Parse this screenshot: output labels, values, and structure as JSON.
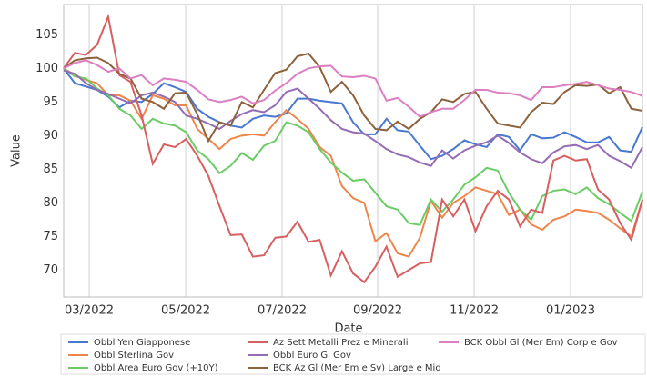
{
  "chart_data": {
    "type": "line",
    "x_label": "Date",
    "y_label": "Value",
    "x": [
      0,
      1,
      2,
      3,
      4,
      5,
      6,
      7,
      8,
      9,
      10,
      11,
      12,
      13,
      14,
      15,
      16,
      17,
      18,
      19,
      20,
      21,
      22,
      23,
      24,
      25,
      26,
      27,
      28,
      29,
      30,
      31,
      32,
      33,
      34,
      35,
      36,
      37,
      38,
      39,
      40,
      41,
      42,
      43,
      44,
      45,
      46,
      47,
      48,
      49,
      50,
      51,
      52
    ],
    "xlim": [
      0,
      52
    ],
    "xticks": [
      {
        "value": 2.29,
        "label": "03/2022"
      },
      {
        "value": 10.96,
        "label": "05/2022"
      },
      {
        "value": 19.62,
        "label": "07/2022"
      },
      {
        "value": 28.21,
        "label": "09/2022"
      },
      {
        "value": 36.88,
        "label": "11/2022"
      },
      {
        "value": 45.54,
        "label": "01/2023"
      }
    ],
    "ylim": [
      66,
      109.5
    ],
    "yticks": [
      70,
      75,
      80,
      85,
      90,
      95,
      100,
      105
    ],
    "grid": "x",
    "series": [
      {
        "name": "Obbl Yen Giapponese",
        "color": "#4878d0",
        "values": [
          100,
          97.8,
          97.3,
          96.8,
          95.8,
          94.2,
          95.2,
          95,
          96.2,
          97.8,
          97.2,
          96.5,
          94,
          92.8,
          92,
          91.5,
          91.2,
          92.5,
          93,
          92.8,
          93.3,
          95.5,
          95.5,
          95.2,
          95,
          94.8,
          92,
          90.2,
          90.2,
          92.5,
          90.8,
          90.6,
          88.5,
          86.5,
          87,
          88,
          89.3,
          88.7,
          88.3,
          90.2,
          89.8,
          87.8,
          90.2,
          89.6,
          89.7,
          90.5,
          89.8,
          89,
          89,
          89.8,
          87.8,
          87.6,
          91.3
        ]
      },
      {
        "name": "Obbl Sterlina Gov",
        "color": "#ee854a",
        "values": [
          100,
          99,
          98.3,
          97.8,
          96,
          96,
          95.2,
          92.5,
          96,
          95.5,
          94.5,
          94.5,
          91,
          89.5,
          88,
          89.5,
          90,
          90.2,
          90,
          92,
          93.8,
          92.5,
          91,
          88.3,
          87,
          82.5,
          80.7,
          80,
          74.3,
          75.5,
          72.5,
          72,
          74.8,
          80.3,
          77.8,
          80,
          81,
          82.3,
          81.8,
          81.3,
          78.2,
          79,
          76.8,
          76,
          77.5,
          78,
          79,
          78.8,
          78.5,
          77.5,
          76.2,
          75,
          80.5
        ]
      },
      {
        "name": "Obbl Area Euro Gov (+10Y)",
        "color": "#6acc64",
        "values": [
          100,
          98.8,
          98.5,
          97,
          96,
          94,
          93,
          91,
          92.5,
          91.8,
          91.5,
          90.5,
          87.8,
          86.5,
          84.4,
          85.5,
          87.4,
          86.4,
          88.5,
          89.2,
          92,
          91.5,
          90.5,
          88,
          86,
          84.5,
          83.3,
          83.5,
          81.5,
          79.5,
          79,
          77,
          76.7,
          80.5,
          78.7,
          80.5,
          82.7,
          83.8,
          85.2,
          84.8,
          81.5,
          79,
          77.5,
          81,
          81.8,
          82,
          81.3,
          82.3,
          80.7,
          79.8,
          78.5,
          77.3,
          81.7
        ]
      },
      {
        "name": "Az Sett Metalli Prez e Minerali",
        "color": "#d65f5f",
        "values": [
          100,
          102.3,
          102,
          103.5,
          107.7,
          99,
          98,
          93,
          85.8,
          88.7,
          88.3,
          89.5,
          87,
          84,
          79.5,
          75.2,
          75.3,
          72,
          72.2,
          74.8,
          75,
          77.2,
          74.2,
          74.5,
          69.2,
          72.8,
          69.5,
          68.2,
          70.5,
          73.5,
          69,
          70,
          71,
          71.2,
          80.5,
          78,
          80.5,
          75.8,
          79.5,
          81.8,
          80.5,
          76.5,
          79,
          78.5,
          86.3,
          87,
          86.3,
          86.5,
          82,
          80.5,
          77,
          74.5,
          80.5
        ]
      },
      {
        "name": "Obbl Euro Gl Gov",
        "color": "#956cb4",
        "values": [
          99.7,
          99.2,
          97.8,
          96.8,
          96.2,
          95.5,
          94.8,
          96,
          96.4,
          95.8,
          95,
          93,
          92.5,
          91.8,
          91,
          92.2,
          93.2,
          93.8,
          93.5,
          94.5,
          96.5,
          97,
          95.5,
          94,
          92.3,
          91,
          90.5,
          90.3,
          89.2,
          88,
          87.2,
          86.8,
          86,
          85.5,
          87.8,
          86.6,
          87.8,
          88.5,
          89,
          90,
          88.9,
          87.5,
          86.5,
          85.9,
          87.5,
          88.4,
          88.6,
          88,
          88.6,
          87,
          86.2,
          85.2,
          88.3
        ]
      },
      {
        "name": "BCK Az Gl (Mer Em e Sv) Large e Mid",
        "color": "#8c613c",
        "values": [
          100,
          101.2,
          101.5,
          101.6,
          100.8,
          99.2,
          98.5,
          95.5,
          95,
          94,
          96.3,
          96.4,
          93.2,
          89.2,
          92,
          91.5,
          95,
          94.2,
          96.8,
          99.3,
          99.8,
          101.8,
          102.2,
          100.2,
          96.5,
          98,
          96,
          93,
          91,
          90.8,
          92.1,
          91,
          92.5,
          93.5,
          95.4,
          95,
          96.2,
          96.5,
          94,
          91.8,
          91.5,
          91.2,
          93.5,
          94.9,
          94.7,
          96.5,
          97.5,
          97.4,
          97.6,
          96.3,
          97.2,
          94,
          93.7
        ]
      },
      {
        "name": "BCK Obbl Gl (Mer Em) Corp e Gov",
        "color": "#dc7ec0",
        "values": [
          100,
          100.8,
          101.2,
          100.5,
          99.5,
          100,
          98.5,
          99,
          97.5,
          98.5,
          98.3,
          98,
          96.8,
          95.4,
          95,
          95.3,
          95.8,
          94.8,
          95.3,
          96.7,
          97.8,
          99.2,
          100,
          100.3,
          100.4,
          98.8,
          98.7,
          98.9,
          98.5,
          95.2,
          95.6,
          94.3,
          92.8,
          93.5,
          94,
          94,
          95.3,
          96.8,
          96.8,
          96.4,
          96.3,
          96,
          95.3,
          97.2,
          97.2,
          97.5,
          97.7,
          98,
          97.5,
          97,
          96.8,
          96.5,
          95.9
        ]
      }
    ]
  }
}
